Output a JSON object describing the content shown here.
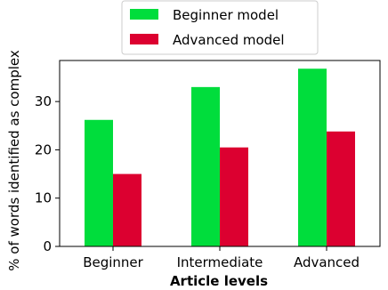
{
  "chart_data": {
    "type": "bar",
    "categories": [
      "Beginner",
      "Intermediate",
      "Advanced"
    ],
    "series": [
      {
        "name": "Beginner model",
        "values": [
          26.2,
          33.0,
          36.8
        ],
        "color": "#00dd3c"
      },
      {
        "name": "Advanced model",
        "values": [
          15.0,
          20.5,
          23.8
        ],
        "color": "#dc0030"
      }
    ],
    "xlabel": "Article levels",
    "ylabel": "% of words identified as complex",
    "ylim": [
      0,
      38.5
    ],
    "yticks": [
      0,
      10,
      20,
      30
    ],
    "grid": false,
    "legend_position": "top-center"
  }
}
